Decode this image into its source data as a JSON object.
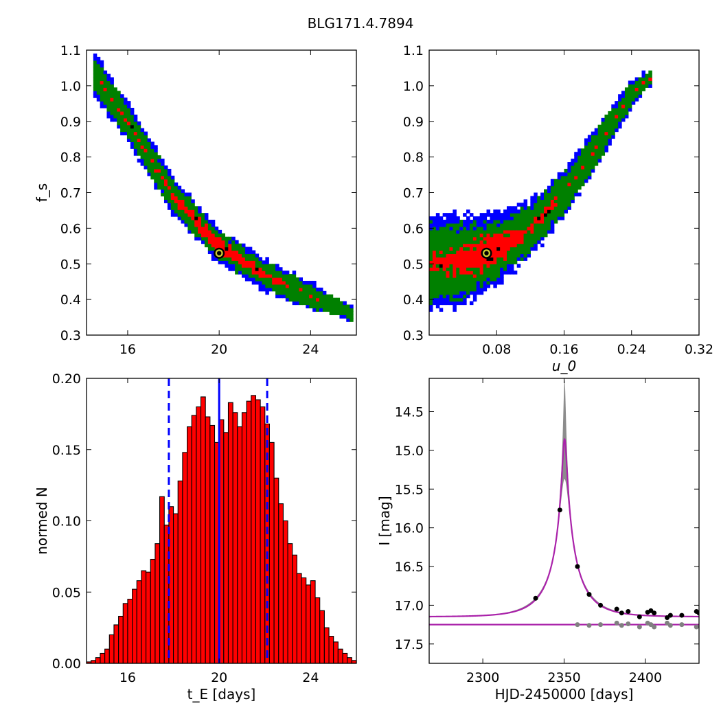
{
  "figure": {
    "title": "BLG171.4.7894"
  },
  "chart_data": [
    {
      "id": "panel-tl",
      "type": "heatmap",
      "xlabel": "",
      "ylabel": "f_s",
      "xlim": [
        14.2,
        26
      ],
      "ylim": [
        0.3,
        1.1
      ],
      "xticks": [
        16,
        20,
        24
      ],
      "xtick_labels": [
        "16",
        "20",
        "24"
      ],
      "yticks": [
        0.3,
        0.4,
        0.5,
        0.6,
        0.7,
        0.8,
        0.9,
        1.0,
        1.1
      ],
      "ytick_labels": [
        "0.3",
        "0.4",
        "0.5",
        "0.6",
        "0.7",
        "0.8",
        "0.9",
        "1.0",
        "1.1"
      ],
      "region_colors": {
        "outer": "#0000ff",
        "middle": "#008000",
        "inner": "#ff0000",
        "core": "#000000"
      },
      "best_fit": {
        "x": 20.0,
        "y": 0.53
      },
      "band": {
        "x": [
          14.6,
          16,
          18,
          20,
          22,
          24,
          25.8
        ],
        "y": [
          1.03,
          0.9,
          0.69,
          0.55,
          0.47,
          0.41,
          0.36
        ]
      },
      "band_width": [
        0.055,
        0.05,
        0.045,
        0.045,
        0.04,
        0.035,
        0.02
      ]
    },
    {
      "id": "panel-tr",
      "type": "heatmap",
      "xlabel": "u_0",
      "ylabel": "",
      "xlim": [
        0.0,
        0.32
      ],
      "ylim": [
        0.3,
        1.1
      ],
      "xticks": [
        0.08,
        0.16,
        0.24,
        0.32
      ],
      "xtick_labels": [
        "0.08",
        "0.16",
        "0.24",
        "0.32"
      ],
      "yticks": [
        0.3,
        0.4,
        0.5,
        0.6,
        0.7,
        0.8,
        0.9,
        1.0,
        1.1
      ],
      "ytick_labels": [
        "0.3",
        "0.4",
        "0.5",
        "0.6",
        "0.7",
        "0.8",
        "0.9",
        "1.0",
        "1.1"
      ],
      "region_colors": {
        "outer": "#0000ff",
        "middle": "#008000",
        "inner": "#ff0000",
        "core": "#000000"
      },
      "best_fit": {
        "x": 0.068,
        "y": 0.53
      },
      "band": {
        "x": [
          0.0,
          0.04,
          0.08,
          0.12,
          0.16,
          0.2,
          0.24,
          0.26
        ],
        "y": [
          0.5,
          0.51,
          0.54,
          0.6,
          0.7,
          0.83,
          0.98,
          1.02
        ]
      },
      "band_width": [
        0.12,
        0.11,
        0.09,
        0.07,
        0.06,
        0.05,
        0.035,
        0.02
      ]
    },
    {
      "id": "panel-bl",
      "type": "bar",
      "xlabel": "t_E [days]",
      "ylabel": "normed N",
      "xlim": [
        14.2,
        26
      ],
      "ylim": [
        0.0,
        0.2
      ],
      "xticks": [
        16,
        20,
        24
      ],
      "xtick_labels": [
        "16",
        "20",
        "24"
      ],
      "yticks": [
        0.0,
        0.05,
        0.1,
        0.15,
        0.2
      ],
      "ytick_labels": [
        "0.00",
        "0.05",
        "0.10",
        "0.15",
        "0.20"
      ],
      "bar_color": "#ff0000",
      "bin_start": 14.2,
      "bin_width": 0.2,
      "values": [
        0.001,
        0.002,
        0.004,
        0.007,
        0.01,
        0.02,
        0.027,
        0.033,
        0.042,
        0.045,
        0.052,
        0.058,
        0.065,
        0.064,
        0.073,
        0.084,
        0.117,
        0.097,
        0.11,
        0.105,
        0.128,
        0.148,
        0.166,
        0.174,
        0.18,
        0.187,
        0.173,
        0.167,
        0.155,
        0.171,
        0.162,
        0.183,
        0.176,
        0.166,
        0.176,
        0.184,
        0.188,
        0.185,
        0.18,
        0.168,
        0.155,
        0.13,
        0.112,
        0.1,
        0.084,
        0.076,
        0.063,
        0.06,
        0.055,
        0.058,
        0.046,
        0.037,
        0.025,
        0.019,
        0.015,
        0.01,
        0.007,
        0.004,
        0.002
      ],
      "lines": {
        "median": 20.0,
        "lower": 17.8,
        "upper": 22.1,
        "color": "#0000ff"
      }
    },
    {
      "id": "panel-br",
      "type": "line",
      "xlabel": "HJD-2450000 [days]",
      "ylabel": "I [mag]",
      "xlim": [
        2267,
        2433
      ],
      "ylim": [
        17.75,
        14.07
      ],
      "xticks": [
        2300,
        2350,
        2400
      ],
      "xtick_labels": [
        "2300",
        "2350",
        "2400"
      ],
      "yticks": [
        14.5,
        15.0,
        15.5,
        16.0,
        16.5,
        17.0,
        17.5
      ],
      "ytick_labels": [
        "14.5",
        "15.0",
        "15.5",
        "16.0",
        "16.5",
        "17.0",
        "17.5"
      ],
      "model_color": "#aa22aa",
      "band_color": "#808080",
      "model": {
        "t0": 2350.3,
        "tE": 20.0,
        "u0": 0.068,
        "fs": 0.53,
        "base_mag": 17.15
      },
      "baseline_mag": 17.25,
      "points_black": {
        "x": [
          2332.5,
          2347.4,
          2358.2,
          2365.4,
          2372.4,
          2382.4,
          2385.4,
          2389.4,
          2396.4,
          2401.4,
          2403.4,
          2405.4,
          2413.4,
          2415.4,
          2422.4,
          2431.4,
          2433
        ],
        "y": [
          16.91,
          15.77,
          16.5,
          16.86,
          17.0,
          17.05,
          17.1,
          17.08,
          17.15,
          17.09,
          17.07,
          17.1,
          17.16,
          17.13,
          17.13,
          17.08,
          17.1
        ]
      },
      "points_gray": {
        "x": [
          2358.2,
          2365.4,
          2372.4,
          2382.4,
          2385.4,
          2389.4,
          2396.4,
          2401.4,
          2403.4,
          2405.4,
          2413.4,
          2415.4,
          2422.4,
          2431.4
        ],
        "y": [
          17.25,
          17.26,
          17.25,
          17.23,
          17.26,
          17.24,
          17.28,
          17.23,
          17.25,
          17.28,
          17.23,
          17.26,
          17.25,
          17.28
        ]
      }
    }
  ]
}
